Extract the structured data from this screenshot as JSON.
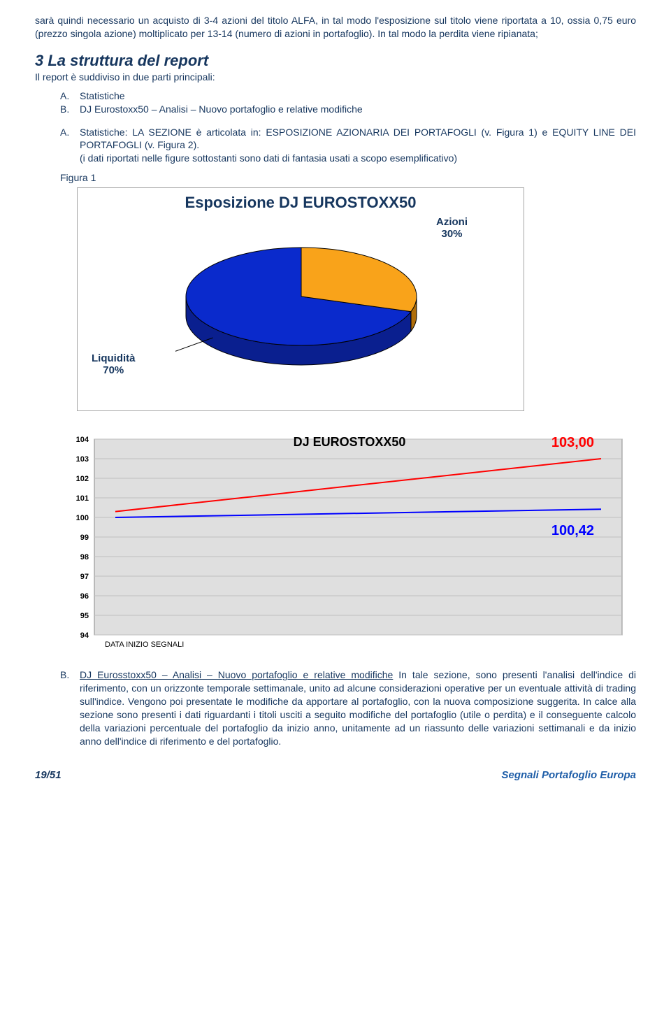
{
  "intro_text": "sarà quindi necessario un acquisto di 3-4 azioni del titolo ALFA, in tal modo l'esposizione sul titolo viene riportata a 10, ossia 0,75 euro (prezzo singola azione) moltiplicato per 13-14 (numero di azioni in portafoglio). In tal modo la perdita viene ripianata;",
  "section3": {
    "heading": "3 La struttura del report",
    "subline": "Il report è suddiviso in due parti principali:"
  },
  "list_ab": {
    "a_letter": "A.",
    "a_text": "Statistiche",
    "b_letter": "B.",
    "b_text": "DJ Eurostoxx50 – Analisi – Nuovo portafoglio e relative modifiche"
  },
  "stat_block": {
    "letter": "A.",
    "text": "Statistiche: LA SEZIONE è articolata in: ESPOSIZIONE AZIONARIA DEI PORTAFOGLI   (v. Figura 1) e EQUITY LINE DEI PORTAFOGLI (v. Figura 2).",
    "paren": "(i dati riportati nelle figure sottostanti sono dati di fantasia usati a scopo esemplificativo)"
  },
  "figure1_label": "Figura 1",
  "pie": {
    "title": "Esposizione DJ EUROSTOXX50",
    "type": "pie",
    "slices": [
      {
        "label": "Azioni",
        "pct": "30%",
        "value": 30,
        "color": "#f9a31a"
      },
      {
        "label": "Liquidità",
        "pct": "70%",
        "value": 70,
        "color": "#0a2acc"
      }
    ],
    "depth_color_a": "#0a1f8f",
    "depth_color_b": "#b06e0a",
    "outline": "#000000",
    "background_color": "#ffffff",
    "title_fontsize": 22
  },
  "line": {
    "title": "DJ EUROSTOXX50",
    "type": "line",
    "ylim": [
      94,
      104
    ],
    "ytick_step": 1,
    "yticks": [
      "104",
      "103",
      "102",
      "101",
      "100",
      "99",
      "98",
      "97",
      "96",
      "95",
      "94"
    ],
    "series": [
      {
        "name": "red",
        "color": "#ff0000",
        "start_y": 100.3,
        "end_y": 103.0,
        "width": 2
      },
      {
        "name": "blue",
        "color": "#0000ff",
        "start_y": 100.0,
        "end_y": 100.42,
        "width": 2
      }
    ],
    "value_a": "103,00",
    "value_b": "100,42",
    "xaxis_label": "DATA INIZIO SEGNALI",
    "grid_color": "#bfbfbf",
    "plot_bg": "#dfdfdf",
    "outer_bg": "#ffffff",
    "label_fontsize": 11
  },
  "section_b": {
    "letter": "B.",
    "underlined": "DJ Eurosstoxx50 – Analisi – Nuovo portafoglio e relative modifiche",
    "rest": " In tale sezione, sono presenti l'analisi dell'indice di riferimento, con un orizzonte temporale settimanale, unito ad alcune considerazioni operative per un eventuale attività di trading sull'indice. Vengono poi presentate le modifiche da apportare al portafoglio, con la nuova composizione suggerita. In calce alla sezione sono presenti i dati riguardanti i titoli usciti a seguito modifiche del portafoglio (utile o perdita) e il conseguente calcolo della variazioni percentuale del portafoglio da inizio anno, unitamente ad un riassunto delle variazioni settimanali e da inizio anno dell'indice di riferimento e del portafoglio."
  },
  "footer": {
    "left": "19/51",
    "right": "Segnali Portafoglio Europa"
  }
}
